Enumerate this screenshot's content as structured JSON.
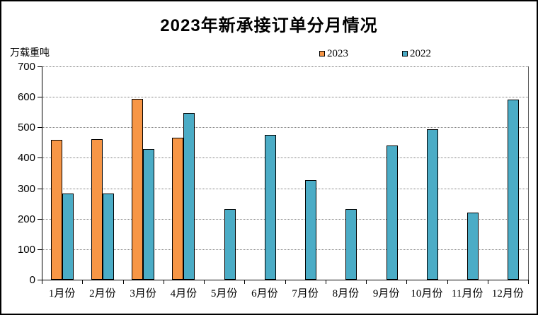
{
  "title": "2023年新承接订单分月情况",
  "y_unit_label": "万载重吨",
  "legend": [
    {
      "label": "2023",
      "color": "#F79646"
    },
    {
      "label": "2022",
      "color": "#4BACC6"
    }
  ],
  "colors": {
    "bar_2023": "#F79646",
    "bar_2022": "#4BACC6",
    "bar_border": "#000000",
    "axis": "#000000",
    "gridline": "#808080",
    "background": "#FFFFFF"
  },
  "chart_data": {
    "type": "bar",
    "title": "2023年新承接订单分月情况",
    "xlabel": "",
    "ylabel": "万载重吨",
    "categories": [
      "1月份",
      "2月份",
      "3月份",
      "4月份",
      "5月份",
      "6月份",
      "7月份",
      "8月份",
      "9月份",
      "10月份",
      "11月份",
      "12月份"
    ],
    "series": [
      {
        "name": "2023",
        "color": "#F79646",
        "values": [
          459,
          462,
          593,
          467,
          null,
          null,
          null,
          null,
          null,
          null,
          null,
          null
        ]
      },
      {
        "name": "2022",
        "color": "#4BACC6",
        "values": [
          282,
          283,
          428,
          547,
          231,
          476,
          326,
          232,
          440,
          493,
          221,
          592
        ]
      }
    ],
    "ylim": [
      0,
      700
    ],
    "ytick_step": 100,
    "yticks": [
      0,
      100,
      200,
      300,
      400,
      500,
      600,
      700
    ],
    "grid": "horizontal-dotted",
    "legend_position": "top"
  }
}
